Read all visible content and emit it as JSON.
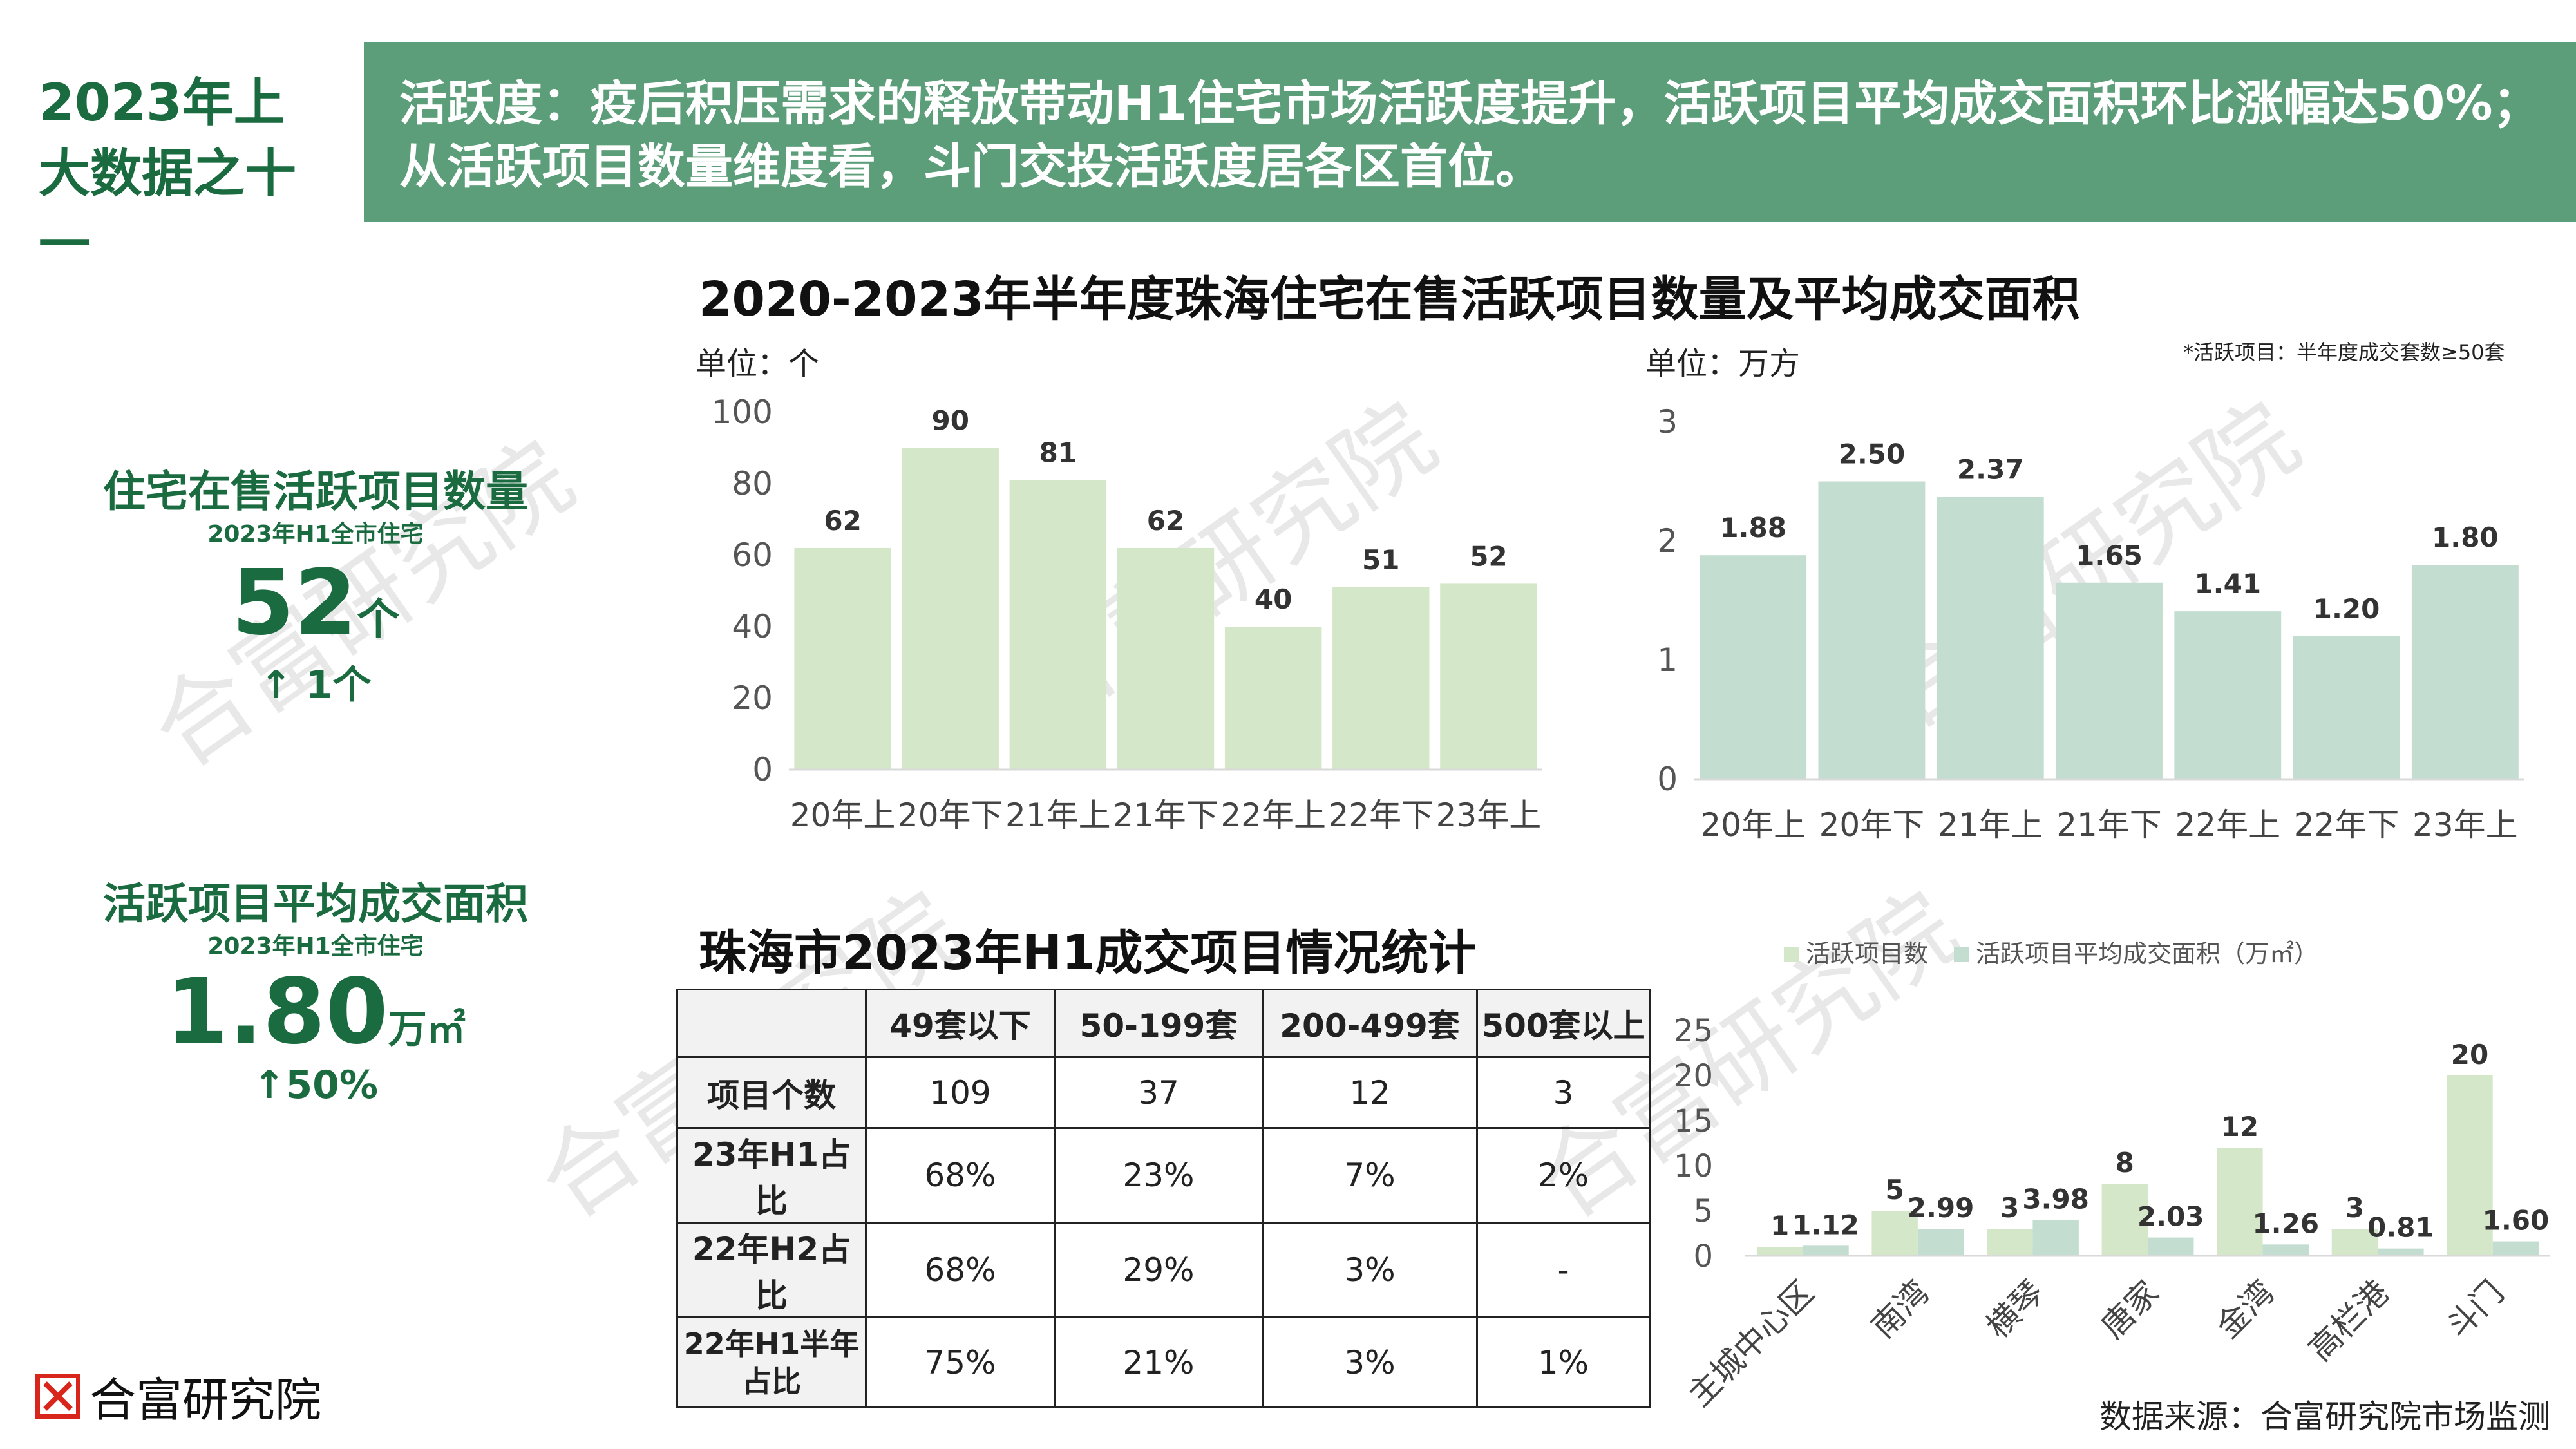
{
  "header": {
    "left_line1": "2023年上",
    "left_line2": "大数据之十一",
    "text_line1": "活跃度：疫后积压需求的释放带动H1住宅市场活跃度提升，活跃项目平均成交面积环比涨幅达50%；",
    "text_line2": "从活跃项目数量维度看，斗门交投活跃度居各区首位。"
  },
  "stats": {
    "count": {
      "title": "住宅在售活跃项目数量",
      "sub": "2023年H1全市住宅",
      "value": "52",
      "unit": "个",
      "change": "↑ 1个"
    },
    "area": {
      "title": "活跃项目平均成交面积",
      "sub": "2023年H1全市住宅",
      "value": "1.80",
      "unit": "万㎡",
      "change": "↑50%"
    }
  },
  "charts_title": "2020-2023年半年度珠海住宅在售活跃项目数量及平均成交面积",
  "unit_left": "单位：个",
  "unit_right": "单位：万方",
  "footnote": "*活跃项目：半年度成交套数≥50套",
  "table_title": "珠海市2023年H1成交项目情况统计",
  "table": {
    "headers": [
      "",
      "49套以下",
      "50-199套",
      "200-499套",
      "500套以上"
    ],
    "rows": [
      [
        "项目个数",
        "109",
        "37",
        "12",
        "3"
      ],
      [
        "23年H1占比",
        "68%",
        "23%",
        "7%",
        "2%"
      ],
      [
        "22年H2占比",
        "68%",
        "29%",
        "3%",
        "-"
      ],
      [
        "22年H1半年占比",
        "75%",
        "21%",
        "3%",
        "1%"
      ]
    ]
  },
  "chart_data": [
    {
      "type": "bar",
      "categories": [
        "20年上",
        "20年下",
        "21年上",
        "21年下",
        "22年上",
        "22年下",
        "23年上"
      ],
      "values": [
        62,
        90,
        81,
        62,
        40,
        51,
        52
      ],
      "ylim": [
        0,
        100
      ],
      "yticks": [
        0,
        20,
        40,
        60,
        80,
        100
      ],
      "ylabel": "单位：个",
      "color": "#d4e8c9",
      "grid": false
    },
    {
      "type": "bar",
      "categories": [
        "20年上",
        "20年下",
        "21年上",
        "21年下",
        "22年上",
        "22年下",
        "23年上"
      ],
      "values": [
        1.88,
        2.5,
        2.37,
        1.65,
        1.41,
        1.2,
        1.8
      ],
      "labels": [
        "1.88",
        "2.50",
        "2.37",
        "1.65",
        "1.41",
        "1.20",
        "1.80"
      ],
      "ylim": [
        0,
        3
      ],
      "yticks": [
        0,
        1,
        2,
        3
      ],
      "ylabel": "单位：万方",
      "color": "#c3ddd0",
      "grid": false
    },
    {
      "type": "bar",
      "categories": [
        "主城中心区",
        "南湾",
        "横琴",
        "唐家",
        "金湾",
        "高栏港",
        "斗门"
      ],
      "series": [
        {
          "name": "活跃项目数",
          "values": [
            1,
            5,
            3,
            8,
            12,
            3,
            20
          ],
          "labels": [
            "1",
            "5",
            "3",
            "8",
            "12",
            "3",
            "20"
          ],
          "color": "#d4e8c9"
        },
        {
          "name": "活跃项目平均成交面积（万㎡）",
          "values": [
            1.12,
            2.99,
            3.98,
            2.03,
            1.26,
            0.81,
            1.6
          ],
          "labels": [
            "1.12",
            "2.99",
            "3.98",
            "2.03",
            "1.26",
            "0.81",
            "1.60"
          ],
          "color": "#c3ddd0"
        }
      ],
      "ylim": [
        0,
        25
      ],
      "yticks": [
        0,
        5,
        10,
        15,
        20,
        25
      ],
      "legend": "top",
      "grid": false
    }
  ],
  "watermark": "合富研究院",
  "logo": {
    "text": "合富研究院",
    "color": "#d9261c"
  },
  "source": "数据来源：合富研究院市场监测"
}
